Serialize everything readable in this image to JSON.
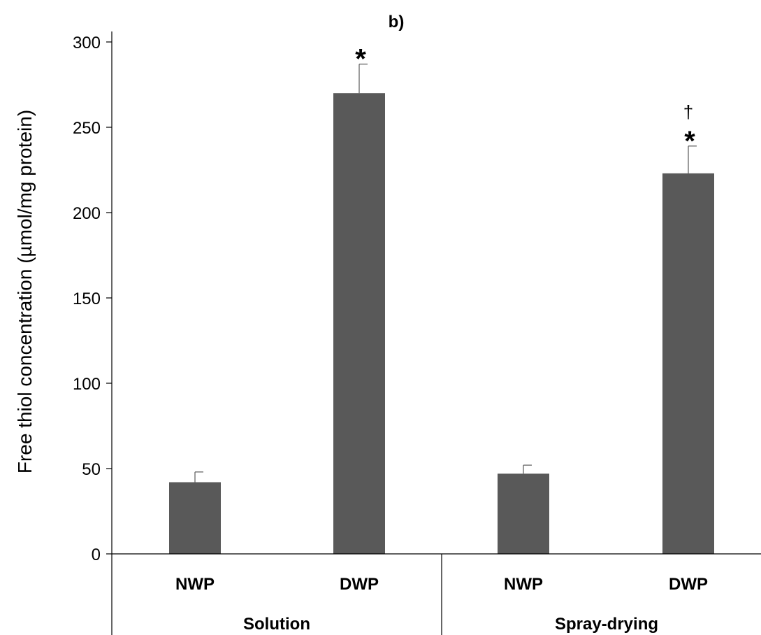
{
  "chart_data": {
    "type": "bar",
    "title": "b)",
    "xlabel": "",
    "ylabel": "Free thiol concentration (µmol/mg protein)",
    "ylim": [
      0,
      300
    ],
    "yticks": [
      0,
      50,
      100,
      150,
      200,
      250,
      300
    ],
    "grid": false,
    "legend": "none",
    "bar_color": "#595959",
    "groups": [
      {
        "label": "Solution",
        "categories": [
          "NWP",
          "DWP"
        ]
      },
      {
        "label": "Spray-drying",
        "categories": [
          "NWP",
          "DWP"
        ]
      }
    ],
    "categories": [
      "NWP",
      "DWP",
      "NWP",
      "DWP"
    ],
    "values": [
      42,
      270,
      47,
      223
    ],
    "errors": [
      6,
      17,
      5,
      16
    ],
    "annotations": [
      {
        "bar": 1,
        "marks": [
          "*"
        ]
      },
      {
        "bar": 3,
        "marks": [
          "†",
          "*"
        ]
      }
    ]
  }
}
